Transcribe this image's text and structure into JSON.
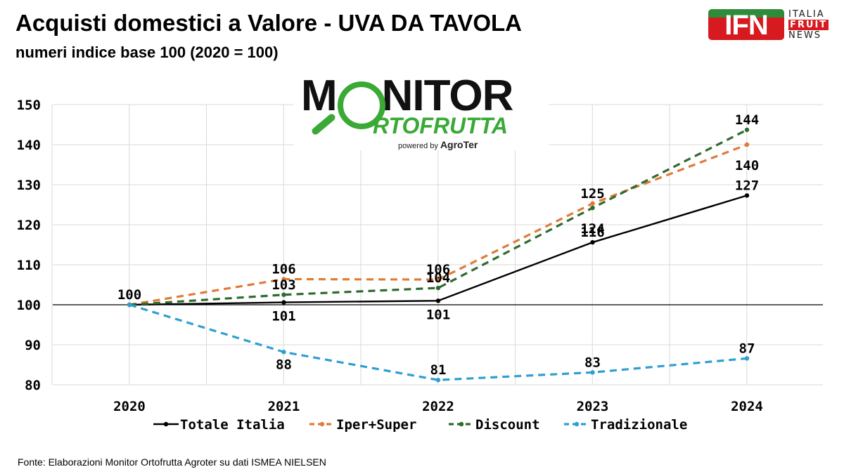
{
  "header": {
    "title": "Acquisti domestici a Valore - UVA DA TAVOLA",
    "subtitle": "numeri indice base 100 (2020 = 100)"
  },
  "footer": {
    "source": "Fonte: Elaborazioni Monitor Ortofrutta Agroter su dati ISMEA NIELSEN"
  },
  "logos": {
    "ifn": {
      "letters": "IFN",
      "line1": "ITALIA",
      "line2": "FRUIT",
      "line3": "NEWS"
    },
    "monitor": {
      "line1a": "M",
      "line1b": "NITOR",
      "line2": "RTOFRUTTA",
      "powered": "powered by",
      "brand": "AgroTer"
    }
  },
  "chart_data": {
    "type": "line",
    "title": "Acquisti domestici a Valore - UVA DA TAVOLA",
    "subtitle": "numeri indice base 100 (2020 = 100)",
    "x": [
      "2020",
      "2021",
      "2022",
      "2023",
      "2024"
    ],
    "ylim": [
      80,
      150
    ],
    "yticks": [
      80,
      90,
      100,
      110,
      120,
      130,
      140,
      150
    ],
    "grid": true,
    "reference_line": 100,
    "legend_position": "bottom",
    "series": [
      {
        "name": "Totale Italia",
        "color": "#000000",
        "dashed": false,
        "values": [
          100,
          100.6,
          101,
          115.6,
          127.3
        ],
        "labels": [
          "100",
          "101",
          "101",
          "116",
          "127"
        ]
      },
      {
        "name": "Iper+Super",
        "color": "#e07b39",
        "dashed": true,
        "values": [
          100,
          106.4,
          106.3,
          125.3,
          140
        ],
        "labels": [
          "",
          "106",
          "106",
          "125",
          "140"
        ]
      },
      {
        "name": "Discount",
        "color": "#2e6b2e",
        "dashed": true,
        "values": [
          100,
          102.5,
          104.2,
          124.2,
          143.7
        ],
        "labels": [
          "",
          "103",
          "104",
          "124",
          "144"
        ]
      },
      {
        "name": "Tradizionale",
        "color": "#2e9fd1",
        "dashed": true,
        "values": [
          100,
          88.2,
          81.2,
          83.1,
          86.6
        ],
        "labels": [
          "",
          "88",
          "81",
          "83",
          "87"
        ]
      }
    ]
  }
}
